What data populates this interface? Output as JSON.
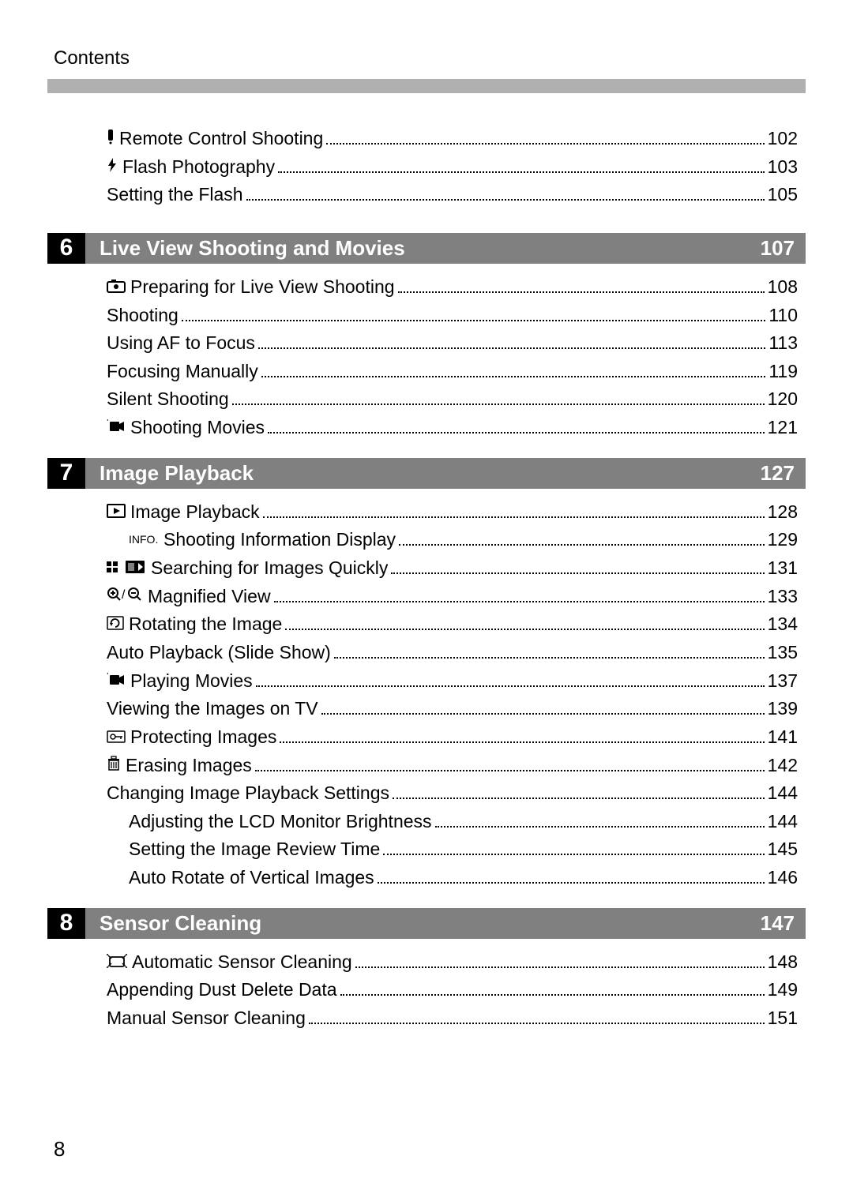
{
  "header": "Contents",
  "pageNumber": "8",
  "preEntries": [
    {
      "icon": "remote-icon",
      "label": "Remote Control Shooting",
      "page": "102",
      "sub": false
    },
    {
      "icon": "flash-icon",
      "label": "Flash Photography",
      "page": "103",
      "sub": false
    },
    {
      "icon": null,
      "label": "Setting the Flash",
      "page": "105",
      "sub": false
    }
  ],
  "sections": [
    {
      "num": "6",
      "title": "Live View Shooting and Movies",
      "startPage": "107",
      "entries": [
        {
          "icon": "liveview-icon",
          "label": "Preparing for Live View Shooting",
          "page": "108",
          "sub": false
        },
        {
          "icon": null,
          "label": "Shooting",
          "page": "110",
          "sub": false
        },
        {
          "icon": null,
          "label": "Using AF to Focus",
          "page": "113",
          "sub": false
        },
        {
          "icon": null,
          "label": "Focusing Manually",
          "page": "119",
          "sub": false
        },
        {
          "icon": null,
          "label": "Silent Shooting",
          "page": "120",
          "sub": false
        },
        {
          "icon": "movie-icon",
          "label": "Shooting Movies",
          "page": "121",
          "sub": false
        }
      ]
    },
    {
      "num": "7",
      "title": "Image Playback",
      "startPage": "127",
      "entries": [
        {
          "icon": "playback-icon",
          "label": "Image Playback",
          "page": "128",
          "sub": false
        },
        {
          "icon": "info-icon",
          "label": "Shooting Information Display",
          "page": "129",
          "sub": true
        },
        {
          "icon": "index-icon",
          "label": "Searching for Images Quickly",
          "page": "131",
          "sub": false
        },
        {
          "icon": "magnify-icon",
          "label": "Magnified View",
          "page": "133",
          "sub": false
        },
        {
          "icon": "rotate-icon",
          "label": "Rotating the Image",
          "page": "134",
          "sub": false
        },
        {
          "icon": null,
          "label": "Auto Playback (Slide Show)",
          "page": "135",
          "sub": false
        },
        {
          "icon": "movie-icon",
          "label": "Playing Movies",
          "page": "137",
          "sub": false
        },
        {
          "icon": null,
          "label": "Viewing the Images on TV",
          "page": "139",
          "sub": false
        },
        {
          "icon": "protect-icon",
          "label": "Protecting Images",
          "page": "141",
          "sub": false
        },
        {
          "icon": "erase-icon",
          "label": "Erasing Images",
          "page": "142",
          "sub": false
        },
        {
          "icon": null,
          "label": "Changing Image Playback Settings",
          "page": "144",
          "sub": false
        },
        {
          "icon": null,
          "label": "Adjusting the LCD Monitor Brightness",
          "page": "144",
          "sub": true
        },
        {
          "icon": null,
          "label": "Setting the Image Review Time",
          "page": "145",
          "sub": true
        },
        {
          "icon": null,
          "label": "Auto Rotate of Vertical Images",
          "page": "146",
          "sub": true
        }
      ]
    },
    {
      "num": "8",
      "title": "Sensor Cleaning",
      "startPage": "147",
      "entries": [
        {
          "icon": "sensor-icon",
          "label": "Automatic Sensor Cleaning",
          "page": "148",
          "sub": false
        },
        {
          "icon": null,
          "label": "Appending Dust Delete Data",
          "page": "149",
          "sub": false
        },
        {
          "icon": null,
          "label": "Manual Sensor Cleaning",
          "page": "151",
          "sub": false
        }
      ]
    }
  ],
  "colors": {
    "grayBar": "#b0b0b0",
    "sectionBar": "#808080",
    "black": "#000000",
    "white": "#ffffff"
  }
}
